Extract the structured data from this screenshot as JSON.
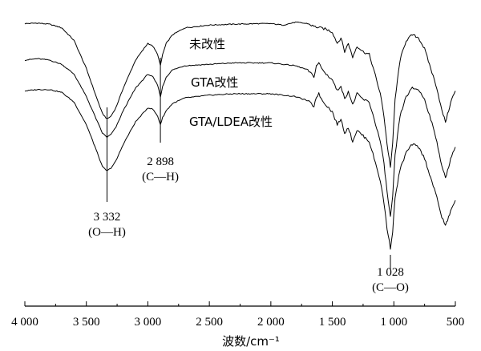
{
  "chart_data": {
    "type": "line",
    "xlabel": "波数/cm⁻¹",
    "xlim": [
      4000,
      500
    ],
    "x_reversed": true,
    "xticks": [
      4000,
      3500,
      3000,
      2500,
      2000,
      1500,
      1000,
      500
    ],
    "xtick_labels": [
      "4 000",
      "3 500",
      "3 000",
      "2 500",
      "2 000",
      "1 500",
      "1 000",
      "500"
    ],
    "ylim": [
      0,
      100
    ],
    "y_axis_shown": false,
    "grid": false,
    "series": [
      {
        "name": "未改性",
        "points": [
          [
            4000,
            95
          ],
          [
            3900,
            95.2
          ],
          [
            3800,
            94.8
          ],
          [
            3700,
            93.5
          ],
          [
            3600,
            89
          ],
          [
            3500,
            79
          ],
          [
            3420,
            69
          ],
          [
            3370,
            63
          ],
          [
            3332,
            61
          ],
          [
            3300,
            62
          ],
          [
            3260,
            65
          ],
          [
            3200,
            72
          ],
          [
            3100,
            82
          ],
          [
            3000,
            88
          ],
          [
            2960,
            87
          ],
          [
            2920,
            84
          ],
          [
            2898,
            80
          ],
          [
            2880,
            84
          ],
          [
            2850,
            88
          ],
          [
            2800,
            91
          ],
          [
            2700,
            93.5
          ],
          [
            2500,
            94.5
          ],
          [
            2300,
            94.8
          ],
          [
            2100,
            95
          ],
          [
            2000,
            95
          ],
          [
            1900,
            94.5
          ],
          [
            1800,
            95.5
          ],
          [
            1700,
            95
          ],
          [
            1650,
            94
          ],
          [
            1600,
            93.5
          ],
          [
            1550,
            93
          ],
          [
            1500,
            92
          ],
          [
            1460,
            88
          ],
          [
            1430,
            90
          ],
          [
            1400,
            85
          ],
          [
            1370,
            88
          ],
          [
            1335,
            83
          ],
          [
            1300,
            87
          ],
          [
            1250,
            85
          ],
          [
            1200,
            84
          ],
          [
            1160,
            78
          ],
          [
            1110,
            70
          ],
          [
            1080,
            62
          ],
          [
            1055,
            52
          ],
          [
            1028,
            44
          ],
          [
            1010,
            52
          ],
          [
            990,
            68
          ],
          [
            950,
            82
          ],
          [
            900,
            89
          ],
          [
            850,
            91
          ],
          [
            800,
            90
          ],
          [
            750,
            86
          ],
          [
            700,
            79
          ],
          [
            650,
            72
          ],
          [
            610,
            64
          ],
          [
            580,
            60
          ],
          [
            555,
            64
          ],
          [
            530,
            68
          ],
          [
            500,
            71
          ]
        ]
      },
      {
        "name": "GTA改性",
        "points": [
          [
            4000,
            82
          ],
          [
            3900,
            82.5
          ],
          [
            3800,
            82
          ],
          [
            3700,
            80.5
          ],
          [
            3600,
            77
          ],
          [
            3500,
            69
          ],
          [
            3420,
            61
          ],
          [
            3370,
            56
          ],
          [
            3332,
            54.5
          ],
          [
            3300,
            55.5
          ],
          [
            3260,
            58
          ],
          [
            3200,
            64
          ],
          [
            3100,
            72
          ],
          [
            3000,
            77
          ],
          [
            2960,
            76
          ],
          [
            2920,
            73
          ],
          [
            2898,
            69
          ],
          [
            2880,
            72.5
          ],
          [
            2850,
            76
          ],
          [
            2800,
            78.5
          ],
          [
            2700,
            80
          ],
          [
            2500,
            80.5
          ],
          [
            2300,
            81
          ],
          [
            2100,
            81
          ],
          [
            2000,
            81
          ],
          [
            1900,
            80.5
          ],
          [
            1800,
            80
          ],
          [
            1700,
            78.5
          ],
          [
            1650,
            76
          ],
          [
            1630,
            80
          ],
          [
            1610,
            81
          ],
          [
            1580,
            78.5
          ],
          [
            1550,
            77
          ],
          [
            1500,
            75
          ],
          [
            1460,
            71
          ],
          [
            1430,
            73
          ],
          [
            1400,
            68
          ],
          [
            1370,
            71
          ],
          [
            1335,
            66
          ],
          [
            1300,
            70
          ],
          [
            1250,
            68
          ],
          [
            1200,
            67
          ],
          [
            1160,
            61
          ],
          [
            1110,
            53
          ],
          [
            1080,
            45
          ],
          [
            1055,
            35
          ],
          [
            1028,
            26
          ],
          [
            1010,
            33
          ],
          [
            990,
            48
          ],
          [
            950,
            62
          ],
          [
            900,
            69
          ],
          [
            850,
            72
          ],
          [
            800,
            71.5
          ],
          [
            750,
            68
          ],
          [
            700,
            61
          ],
          [
            650,
            53
          ],
          [
            610,
            44
          ],
          [
            580,
            40
          ],
          [
            555,
            44
          ],
          [
            530,
            48
          ],
          [
            500,
            51
          ]
        ]
      },
      {
        "name": "GTA/LDEA改性",
        "points": [
          [
            4000,
            71
          ],
          [
            3900,
            71.5
          ],
          [
            3800,
            71.5
          ],
          [
            3700,
            70.5
          ],
          [
            3600,
            67
          ],
          [
            3500,
            59
          ],
          [
            3420,
            50
          ],
          [
            3370,
            44
          ],
          [
            3332,
            42.5
          ],
          [
            3300,
            43.5
          ],
          [
            3260,
            46
          ],
          [
            3200,
            52
          ],
          [
            3100,
            60
          ],
          [
            3000,
            65
          ],
          [
            2960,
            64.5
          ],
          [
            2920,
            62
          ],
          [
            2898,
            59
          ],
          [
            2880,
            61.5
          ],
          [
            2850,
            64
          ],
          [
            2800,
            66.5
          ],
          [
            2700,
            68.5
          ],
          [
            2500,
            69.5
          ],
          [
            2300,
            70
          ],
          [
            2100,
            70
          ],
          [
            2000,
            70
          ],
          [
            1900,
            69.5
          ],
          [
            1800,
            69
          ],
          [
            1700,
            67.5
          ],
          [
            1650,
            65.5
          ],
          [
            1630,
            69
          ],
          [
            1610,
            70
          ],
          [
            1580,
            67.5
          ],
          [
            1550,
            66
          ],
          [
            1500,
            63.5
          ],
          [
            1460,
            59
          ],
          [
            1430,
            61
          ],
          [
            1400,
            56
          ],
          [
            1370,
            58
          ],
          [
            1335,
            53
          ],
          [
            1300,
            57
          ],
          [
            1250,
            55
          ],
          [
            1200,
            53
          ],
          [
            1160,
            47
          ],
          [
            1110,
            39
          ],
          [
            1080,
            31
          ],
          [
            1055,
            22
          ],
          [
            1028,
            15
          ],
          [
            1010,
            21
          ],
          [
            990,
            33
          ],
          [
            950,
            43
          ],
          [
            900,
            49
          ],
          [
            850,
            52
          ],
          [
            800,
            51
          ],
          [
            750,
            47
          ],
          [
            700,
            40
          ],
          [
            650,
            33
          ],
          [
            610,
            26
          ],
          [
            580,
            23
          ],
          [
            555,
            26
          ],
          [
            530,
            29
          ],
          [
            500,
            32
          ]
        ]
      }
    ],
    "annotations": [
      {
        "wavenumber": 3332,
        "line1": "3 332",
        "line2": "(O—H)"
      },
      {
        "wavenumber": 2898,
        "line1": "2 898",
        "line2": "(C—H)"
      },
      {
        "wavenumber": 1028,
        "line1": "1 028",
        "line2": "(C—O)"
      }
    ]
  }
}
